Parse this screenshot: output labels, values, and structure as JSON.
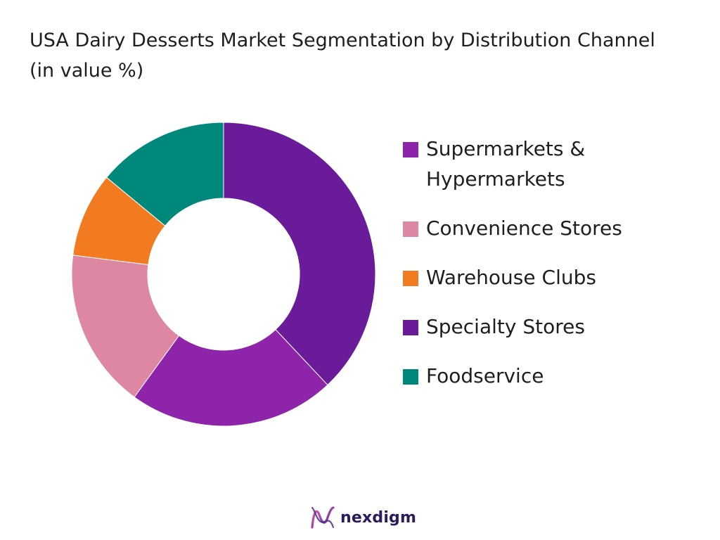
{
  "chart_data": {
    "type": "pie",
    "title": "USA Dairy Desserts Market Segmentation by Distribution Channel (in value %)",
    "categories": [
      "Supermarkets & Hypermarkets",
      "Convenience Stores",
      "Warehouse Clubs",
      "Specialty Stores",
      "Foodservice"
    ],
    "values": [
      22,
      17,
      9,
      38,
      14
    ],
    "colors": [
      "#8E24AA",
      "#DE87A3",
      "#F27B22",
      "#6A1B9A",
      "#00897B"
    ],
    "draw_order": [
      3,
      0,
      1,
      2,
      4
    ],
    "donut": true,
    "legend_position": "right"
  },
  "brand": {
    "name": "nexdigm"
  },
  "icons": {
    "logo": "nexdigm-logo-icon"
  }
}
